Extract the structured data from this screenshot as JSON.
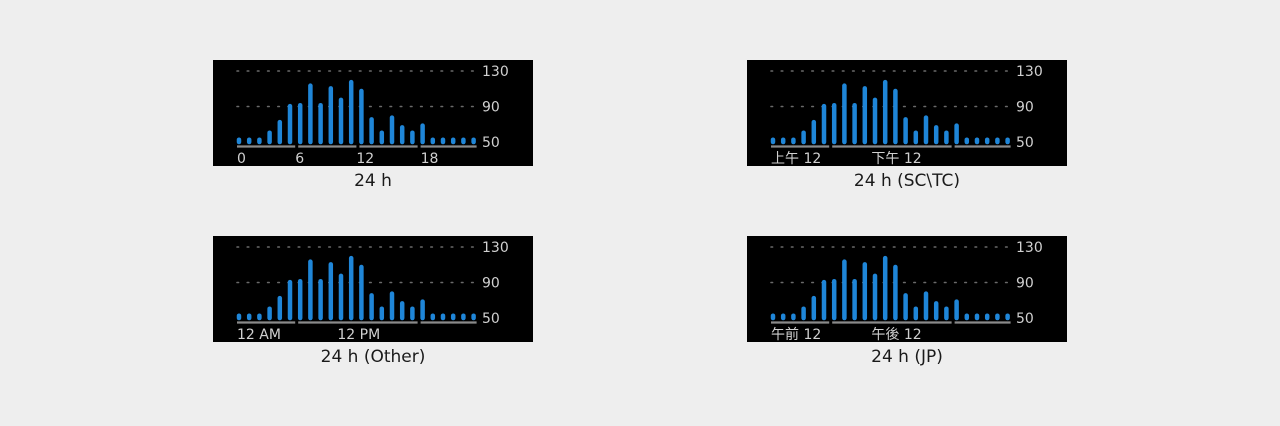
{
  "colors": {
    "bar": "#1f86d8",
    "baseline": "#8a8a8a",
    "grid": "#6a6a6a",
    "label": "#d0d0d0"
  },
  "chart_data": [
    {
      "type": "bar",
      "caption": "24 h",
      "x_tick_labels": [
        "0",
        "6",
        "12",
        "18"
      ],
      "y_tick_labels": [
        "130",
        "90",
        "50"
      ],
      "ylim": [
        50,
        130
      ],
      "values": [
        52,
        52,
        52,
        63,
        75,
        93,
        94,
        116,
        94,
        113,
        100,
        120,
        110,
        78,
        63,
        80,
        69,
        63,
        71,
        52,
        52,
        52,
        52,
        52
      ]
    },
    {
      "type": "bar",
      "caption": "24 h (SC\\TC)",
      "x_tick_labels": [
        "上午 12",
        "下午 12"
      ],
      "y_tick_labels": [
        "130",
        "90",
        "50"
      ],
      "ylim": [
        50,
        130
      ],
      "values": [
        52,
        52,
        52,
        63,
        75,
        93,
        94,
        116,
        94,
        113,
        100,
        120,
        110,
        78,
        63,
        80,
        69,
        63,
        71,
        52,
        52,
        52,
        52,
        52
      ]
    },
    {
      "type": "bar",
      "caption": "24 h (Other)",
      "x_tick_labels": [
        "12 AM",
        "12 PM"
      ],
      "y_tick_labels": [
        "130",
        "90",
        "50"
      ],
      "ylim": [
        50,
        130
      ],
      "values": [
        52,
        52,
        52,
        63,
        75,
        93,
        94,
        116,
        94,
        113,
        100,
        120,
        110,
        78,
        63,
        80,
        69,
        63,
        71,
        52,
        52,
        52,
        52,
        52
      ]
    },
    {
      "type": "bar",
      "caption": "24 h (JP)",
      "x_tick_labels": [
        "午前 12",
        "午後 12"
      ],
      "y_tick_labels": [
        "130",
        "90",
        "50"
      ],
      "ylim": [
        50,
        130
      ],
      "values": [
        52,
        52,
        52,
        63,
        75,
        93,
        94,
        116,
        94,
        113,
        100,
        120,
        110,
        78,
        63,
        80,
        69,
        63,
        71,
        52,
        52,
        52,
        52,
        52
      ]
    }
  ]
}
